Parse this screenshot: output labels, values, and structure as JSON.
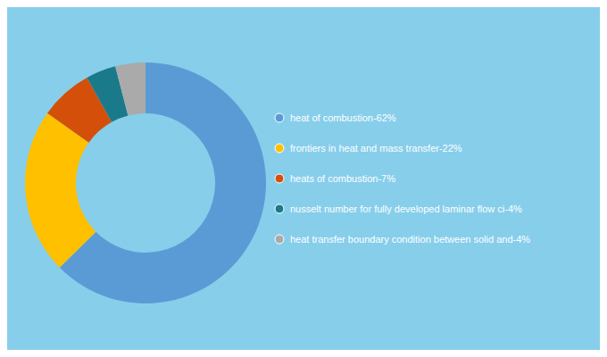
{
  "chart_data": {
    "type": "pie",
    "categories": [
      "heat of combustion-62%",
      "frontiers in heat and mass transfer-22%",
      "heats of combustion-7%",
      "nusselt number for fully developed laminar flow ci-4%",
      "heat transfer boundary condition between solid and-4%"
    ],
    "values": [
      62,
      22,
      7,
      4,
      4
    ],
    "colors": [
      "#5B9BD5",
      "#FFC000",
      "#D4500A",
      "#1A7A8A",
      "#AAAAAA"
    ]
  }
}
